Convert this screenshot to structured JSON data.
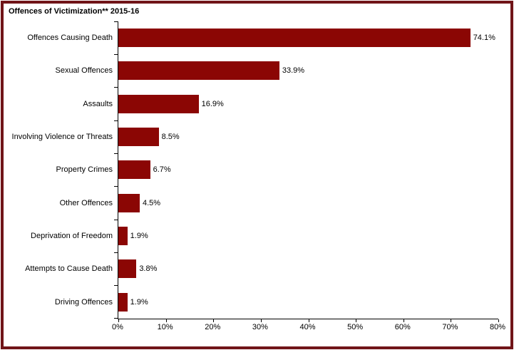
{
  "title": "Offences of Victimization** 2015-16",
  "colors": {
    "bar": "#8B0604",
    "frame_border": "#701418",
    "axis": "#000000",
    "background": "#FFFFFF"
  },
  "chart_data": {
    "type": "bar",
    "orientation": "horizontal",
    "title": "Offences of Victimization** 2015-16",
    "categories": [
      "Offences Causing Death",
      "Sexual Offences",
      "Assaults",
      "Involving Violence or Threats",
      "Property Crimes",
      "Other Offences",
      "Deprivation of Freedom",
      "Attempts to Cause Death",
      "Driving Offences"
    ],
    "values": [
      74.1,
      33.9,
      16.9,
      8.5,
      6.7,
      4.5,
      1.9,
      3.8,
      1.9
    ],
    "value_labels": [
      "74.1%",
      "33.9%",
      "16.9%",
      "8.5%",
      "6.7%",
      "4.5%",
      "1.9%",
      "3.8%",
      "1.9%"
    ],
    "xlabel": "",
    "ylabel": "",
    "xlim": [
      0,
      80
    ],
    "x_ticks": [
      "0%",
      "10%",
      "20%",
      "30%",
      "40%",
      "50%",
      "60%",
      "70%",
      "80%"
    ],
    "grid": false,
    "legend": false
  }
}
